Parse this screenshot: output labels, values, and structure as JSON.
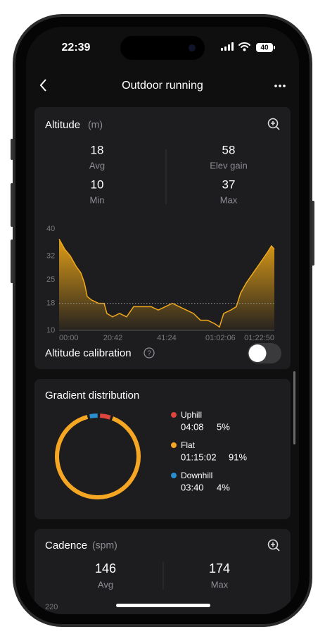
{
  "status": {
    "time": "22:39",
    "battery": "40"
  },
  "header": {
    "title": "Outdoor running"
  },
  "altitude": {
    "title": "Altitude",
    "unit": "(m)",
    "stats": [
      {
        "value": 18,
        "label": "Avg"
      },
      {
        "value": 58,
        "label": "Elev gain"
      },
      {
        "value": 10,
        "label": "Min"
      },
      {
        "value": 37,
        "label": "Max"
      }
    ],
    "chart": {
      "type": "area",
      "color": "#f0a81c",
      "x": [
        0,
        130,
        260,
        390,
        503,
        585,
        650,
        747,
        909,
        1039,
        1104,
        1234,
        1397,
        1559,
        1721,
        1884,
        2127,
        2290,
        2452,
        2615,
        2777,
        2939,
        3102,
        3264,
        3427,
        3589,
        3703,
        3800,
        3963,
        4092,
        4190,
        4320,
        4482,
        4645,
        4807,
        4904,
        4970
      ],
      "values": [
        37,
        34,
        32,
        29,
        27,
        24,
        20,
        19,
        18,
        18,
        15,
        14,
        15,
        14,
        17,
        17,
        17,
        16,
        17,
        18,
        17,
        16,
        15,
        13,
        13,
        12,
        11,
        15,
        16,
        17,
        21,
        24,
        27,
        30,
        33,
        35,
        34
      ],
      "xlim": [
        0,
        4970
      ],
      "ylim": [
        10,
        40
      ],
      "yticks": [
        10,
        18,
        25,
        32,
        40
      ],
      "xticks": [
        {
          "value": 0,
          "label": "00:00"
        },
        {
          "value": 1242,
          "label": "20:42"
        },
        {
          "value": 2484,
          "label": "41:24"
        },
        {
          "value": 3726,
          "label": "01:02:06"
        },
        {
          "value": 4970,
          "label": "01:22:50"
        }
      ]
    },
    "calibration": {
      "label": "Altitude calibration",
      "enabled": false
    }
  },
  "gradient": {
    "title": "Gradient distribution",
    "chart": {
      "type": "donut",
      "categories": [
        "Uphill",
        "Flat",
        "Downhill"
      ],
      "durations": [
        "04:08",
        "01:15:02",
        "03:40"
      ],
      "values": [
        5,
        91,
        4
      ],
      "value_labels": [
        "5%",
        "91%",
        "4%"
      ],
      "colors": [
        "#e0453d",
        "#f5a623",
        "#2a8fd0"
      ]
    }
  },
  "cadence": {
    "title": "Cadence",
    "unit": "(spm)",
    "stats": [
      {
        "value": 146,
        "label": "Avg"
      },
      {
        "value": 174,
        "label": "Max"
      }
    ],
    "ytick": 220
  }
}
